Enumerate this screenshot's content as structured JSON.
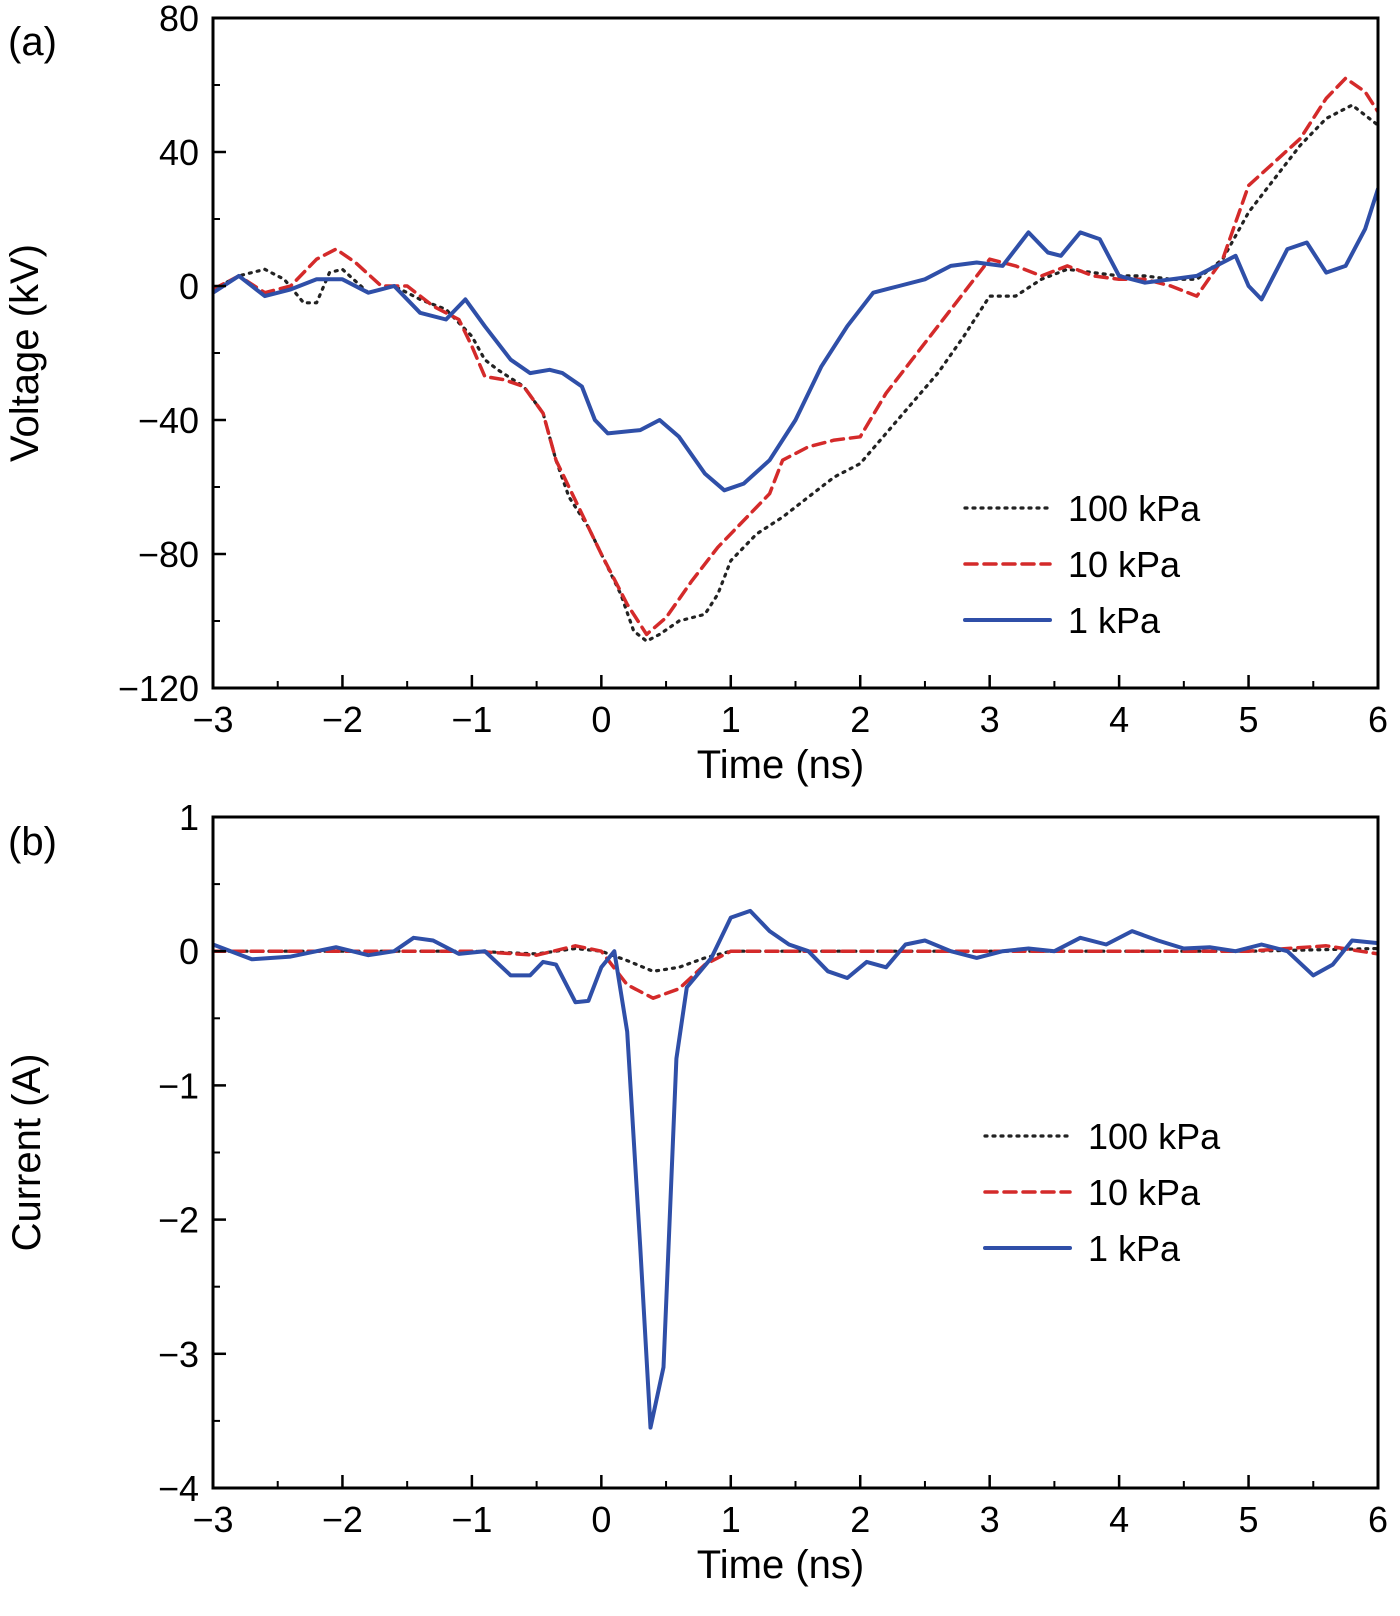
{
  "chart_data": [
    {
      "panel_label": "(a)",
      "type": "line",
      "xlabel": "Time (ns)",
      "ylabel": "Voltage (kV)",
      "xlim": [
        -3,
        6
      ],
      "ylim": [
        -120,
        80
      ],
      "xticks": [
        -3,
        -2,
        -1,
        0,
        1,
        2,
        3,
        4,
        5,
        6
      ],
      "xtick_labels": [
        "−3",
        "−2",
        "−1",
        "0",
        "1",
        "2",
        "3",
        "4",
        "5",
        "6"
      ],
      "yticks": [
        80,
        40,
        0,
        -40,
        -80,
        -120
      ],
      "ytick_labels": [
        "80",
        "40",
        "0",
        "−40",
        "−80",
        "−120"
      ],
      "legend_position": "lower-right",
      "series": [
        {
          "name": "100 kPa",
          "color": "#222222",
          "style": "dotted",
          "points": [
            [
              -3.0,
              -1
            ],
            [
              -2.8,
              3
            ],
            [
              -2.6,
              5
            ],
            [
              -2.45,
              2
            ],
            [
              -2.3,
              -5
            ],
            [
              -2.2,
              -5
            ],
            [
              -2.1,
              4
            ],
            [
              -2.0,
              5
            ],
            [
              -1.8,
              -2
            ],
            [
              -1.6,
              0
            ],
            [
              -1.4,
              -4
            ],
            [
              -1.2,
              -7
            ],
            [
              -1.0,
              -15
            ],
            [
              -0.9,
              -22
            ],
            [
              -0.8,
              -25
            ],
            [
              -0.6,
              -30
            ],
            [
              -0.45,
              -38
            ],
            [
              -0.35,
              -52
            ],
            [
              -0.25,
              -63
            ],
            [
              -0.1,
              -72
            ],
            [
              0.0,
              -80
            ],
            [
              0.15,
              -92
            ],
            [
              0.25,
              -103
            ],
            [
              0.35,
              -106
            ],
            [
              0.45,
              -104
            ],
            [
              0.6,
              -100
            ],
            [
              0.8,
              -98
            ],
            [
              0.9,
              -92
            ],
            [
              1.0,
              -82
            ],
            [
              1.2,
              -74
            ],
            [
              1.4,
              -69
            ],
            [
              1.6,
              -63
            ],
            [
              1.8,
              -57
            ],
            [
              2.0,
              -53
            ],
            [
              2.2,
              -44
            ],
            [
              2.4,
              -35
            ],
            [
              2.6,
              -26
            ],
            [
              2.8,
              -15
            ],
            [
              3.0,
              -3
            ],
            [
              3.2,
              -3
            ],
            [
              3.4,
              2
            ],
            [
              3.6,
              5
            ],
            [
              3.8,
              4
            ],
            [
              4.0,
              3
            ],
            [
              4.2,
              3
            ],
            [
              4.4,
              2
            ],
            [
              4.6,
              2
            ],
            [
              4.8,
              8
            ],
            [
              5.0,
              22
            ],
            [
              5.2,
              32
            ],
            [
              5.4,
              42
            ],
            [
              5.6,
              50
            ],
            [
              5.8,
              54
            ],
            [
              6.0,
              48
            ]
          ]
        },
        {
          "name": "10 kPa",
          "color": "#d42a2a",
          "style": "dashed",
          "points": [
            [
              -3.0,
              -1
            ],
            [
              -2.8,
              3
            ],
            [
              -2.6,
              -2
            ],
            [
              -2.4,
              0
            ],
            [
              -2.2,
              8
            ],
            [
              -2.05,
              11
            ],
            [
              -1.9,
              7
            ],
            [
              -1.7,
              0
            ],
            [
              -1.5,
              0
            ],
            [
              -1.3,
              -6
            ],
            [
              -1.1,
              -10
            ],
            [
              -1.0,
              -18
            ],
            [
              -0.9,
              -27
            ],
            [
              -0.75,
              -28
            ],
            [
              -0.6,
              -30
            ],
            [
              -0.45,
              -38
            ],
            [
              -0.35,
              -52
            ],
            [
              -0.2,
              -64
            ],
            [
              0.0,
              -80
            ],
            [
              0.2,
              -95
            ],
            [
              0.35,
              -104
            ],
            [
              0.5,
              -99
            ],
            [
              0.7,
              -88
            ],
            [
              0.9,
              -78
            ],
            [
              1.1,
              -70
            ],
            [
              1.3,
              -62
            ],
            [
              1.4,
              -52
            ],
            [
              1.6,
              -48
            ],
            [
              1.8,
              -46
            ],
            [
              2.0,
              -45
            ],
            [
              2.2,
              -32
            ],
            [
              2.4,
              -22
            ],
            [
              2.6,
              -12
            ],
            [
              2.8,
              -2
            ],
            [
              3.0,
              8
            ],
            [
              3.2,
              6
            ],
            [
              3.4,
              3
            ],
            [
              3.6,
              6
            ],
            [
              3.8,
              3
            ],
            [
              4.0,
              2
            ],
            [
              4.2,
              2
            ],
            [
              4.4,
              0
            ],
            [
              4.6,
              -3
            ],
            [
              4.8,
              8
            ],
            [
              5.0,
              30
            ],
            [
              5.2,
              37
            ],
            [
              5.4,
              44
            ],
            [
              5.6,
              56
            ],
            [
              5.75,
              62
            ],
            [
              5.9,
              58
            ],
            [
              6.0,
              52
            ]
          ]
        },
        {
          "name": "1 kPa",
          "color": "#2f4fa8",
          "style": "solid",
          "points": [
            [
              -3.0,
              -2
            ],
            [
              -2.8,
              3
            ],
            [
              -2.6,
              -3
            ],
            [
              -2.4,
              -1
            ],
            [
              -2.2,
              2
            ],
            [
              -2.0,
              2
            ],
            [
              -1.8,
              -2
            ],
            [
              -1.6,
              0
            ],
            [
              -1.4,
              -8
            ],
            [
              -1.2,
              -10
            ],
            [
              -1.05,
              -4
            ],
            [
              -0.9,
              -12
            ],
            [
              -0.7,
              -22
            ],
            [
              -0.55,
              -26
            ],
            [
              -0.4,
              -25
            ],
            [
              -0.3,
              -26
            ],
            [
              -0.15,
              -30
            ],
            [
              -0.05,
              -40
            ],
            [
              0.05,
              -44
            ],
            [
              0.3,
              -43
            ],
            [
              0.45,
              -40
            ],
            [
              0.6,
              -45
            ],
            [
              0.8,
              -56
            ],
            [
              0.95,
              -61
            ],
            [
              1.1,
              -59
            ],
            [
              1.3,
              -52
            ],
            [
              1.5,
              -40
            ],
            [
              1.7,
              -24
            ],
            [
              1.9,
              -12
            ],
            [
              2.1,
              -2
            ],
            [
              2.3,
              0
            ],
            [
              2.5,
              2
            ],
            [
              2.7,
              6
            ],
            [
              2.9,
              7
            ],
            [
              3.1,
              6
            ],
            [
              3.3,
              16
            ],
            [
              3.45,
              10
            ],
            [
              3.55,
              9
            ],
            [
              3.7,
              16
            ],
            [
              3.85,
              14
            ],
            [
              4.0,
              3
            ],
            [
              4.2,
              1
            ],
            [
              4.4,
              2
            ],
            [
              4.6,
              3
            ],
            [
              4.8,
              7
            ],
            [
              4.9,
              9
            ],
            [
              5.0,
              0
            ],
            [
              5.1,
              -4
            ],
            [
              5.3,
              11
            ],
            [
              5.45,
              13
            ],
            [
              5.6,
              4
            ],
            [
              5.75,
              6
            ],
            [
              5.9,
              17
            ],
            [
              6.0,
              29
            ]
          ]
        }
      ]
    },
    {
      "panel_label": "(b)",
      "type": "line",
      "xlabel": "Time (ns)",
      "ylabel": "Current (A)",
      "xlim": [
        -3,
        6
      ],
      "ylim": [
        -4,
        1
      ],
      "xticks": [
        -3,
        -2,
        -1,
        0,
        1,
        2,
        3,
        4,
        5,
        6
      ],
      "xtick_labels": [
        "−3",
        "−2",
        "−1",
        "0",
        "1",
        "2",
        "3",
        "4",
        "5",
        "6"
      ],
      "yticks": [
        1,
        0,
        -1,
        -2,
        -3,
        -4
      ],
      "ytick_labels": [
        "1",
        "0",
        "−1",
        "−2",
        "−3",
        "−4"
      ],
      "legend_position": "lower-right",
      "series": [
        {
          "name": "100 kPa",
          "color": "#222222",
          "style": "dotted",
          "points": [
            [
              -3.0,
              0.0
            ],
            [
              -2.0,
              0.0
            ],
            [
              -1.0,
              0.0
            ],
            [
              -0.5,
              -0.02
            ],
            [
              -0.2,
              0.02
            ],
            [
              0.0,
              0.0
            ],
            [
              0.2,
              -0.07
            ],
            [
              0.4,
              -0.15
            ],
            [
              0.6,
              -0.12
            ],
            [
              0.8,
              -0.05
            ],
            [
              1.0,
              0.0
            ],
            [
              2.0,
              0.0
            ],
            [
              3.0,
              0.0
            ],
            [
              4.0,
              0.0
            ],
            [
              5.0,
              0.0
            ],
            [
              6.0,
              0.02
            ]
          ]
        },
        {
          "name": "10 kPa",
          "color": "#d42a2a",
          "style": "dashed",
          "points": [
            [
              -3.0,
              0.0
            ],
            [
              -2.0,
              0.0
            ],
            [
              -1.0,
              0.0
            ],
            [
              -0.5,
              -0.03
            ],
            [
              -0.2,
              0.04
            ],
            [
              0.0,
              0.0
            ],
            [
              0.2,
              -0.25
            ],
            [
              0.4,
              -0.35
            ],
            [
              0.6,
              -0.28
            ],
            [
              0.8,
              -0.1
            ],
            [
              1.0,
              0.0
            ],
            [
              2.0,
              0.0
            ],
            [
              3.0,
              0.0
            ],
            [
              4.0,
              0.0
            ],
            [
              5.0,
              0.0
            ],
            [
              5.6,
              0.04
            ],
            [
              6.0,
              -0.02
            ]
          ]
        },
        {
          "name": "1 kPa",
          "color": "#2f4fa8",
          "style": "solid",
          "points": [
            [
              -3.0,
              0.05
            ],
            [
              -2.7,
              -0.06
            ],
            [
              -2.4,
              -0.04
            ],
            [
              -2.2,
              0.0
            ],
            [
              -2.05,
              0.03
            ],
            [
              -1.8,
              -0.03
            ],
            [
              -1.6,
              0.0
            ],
            [
              -1.45,
              0.1
            ],
            [
              -1.3,
              0.08
            ],
            [
              -1.1,
              -0.02
            ],
            [
              -0.9,
              0.0
            ],
            [
              -0.7,
              -0.18
            ],
            [
              -0.55,
              -0.18
            ],
            [
              -0.45,
              -0.08
            ],
            [
              -0.35,
              -0.1
            ],
            [
              -0.2,
              -0.38
            ],
            [
              -0.1,
              -0.37
            ],
            [
              0.0,
              -0.12
            ],
            [
              0.1,
              0.0
            ],
            [
              0.2,
              -0.6
            ],
            [
              0.3,
              -2.2
            ],
            [
              0.38,
              -3.55
            ],
            [
              0.48,
              -3.1
            ],
            [
              0.58,
              -0.8
            ],
            [
              0.66,
              -0.27
            ],
            [
              0.85,
              -0.05
            ],
            [
              1.0,
              0.25
            ],
            [
              1.15,
              0.3
            ],
            [
              1.3,
              0.15
            ],
            [
              1.45,
              0.05
            ],
            [
              1.6,
              0.0
            ],
            [
              1.75,
              -0.15
            ],
            [
              1.9,
              -0.2
            ],
            [
              2.05,
              -0.08
            ],
            [
              2.2,
              -0.12
            ],
            [
              2.35,
              0.05
            ],
            [
              2.5,
              0.08
            ],
            [
              2.7,
              0.0
            ],
            [
              2.9,
              -0.05
            ],
            [
              3.1,
              0.0
            ],
            [
              3.3,
              0.02
            ],
            [
              3.5,
              0.0
            ],
            [
              3.7,
              0.1
            ],
            [
              3.9,
              0.05
            ],
            [
              4.1,
              0.15
            ],
            [
              4.3,
              0.08
            ],
            [
              4.5,
              0.02
            ],
            [
              4.7,
              0.03
            ],
            [
              4.9,
              0.0
            ],
            [
              5.1,
              0.05
            ],
            [
              5.3,
              0.0
            ],
            [
              5.5,
              -0.18
            ],
            [
              5.65,
              -0.1
            ],
            [
              5.8,
              0.08
            ],
            [
              6.0,
              0.06
            ]
          ]
        }
      ]
    }
  ]
}
